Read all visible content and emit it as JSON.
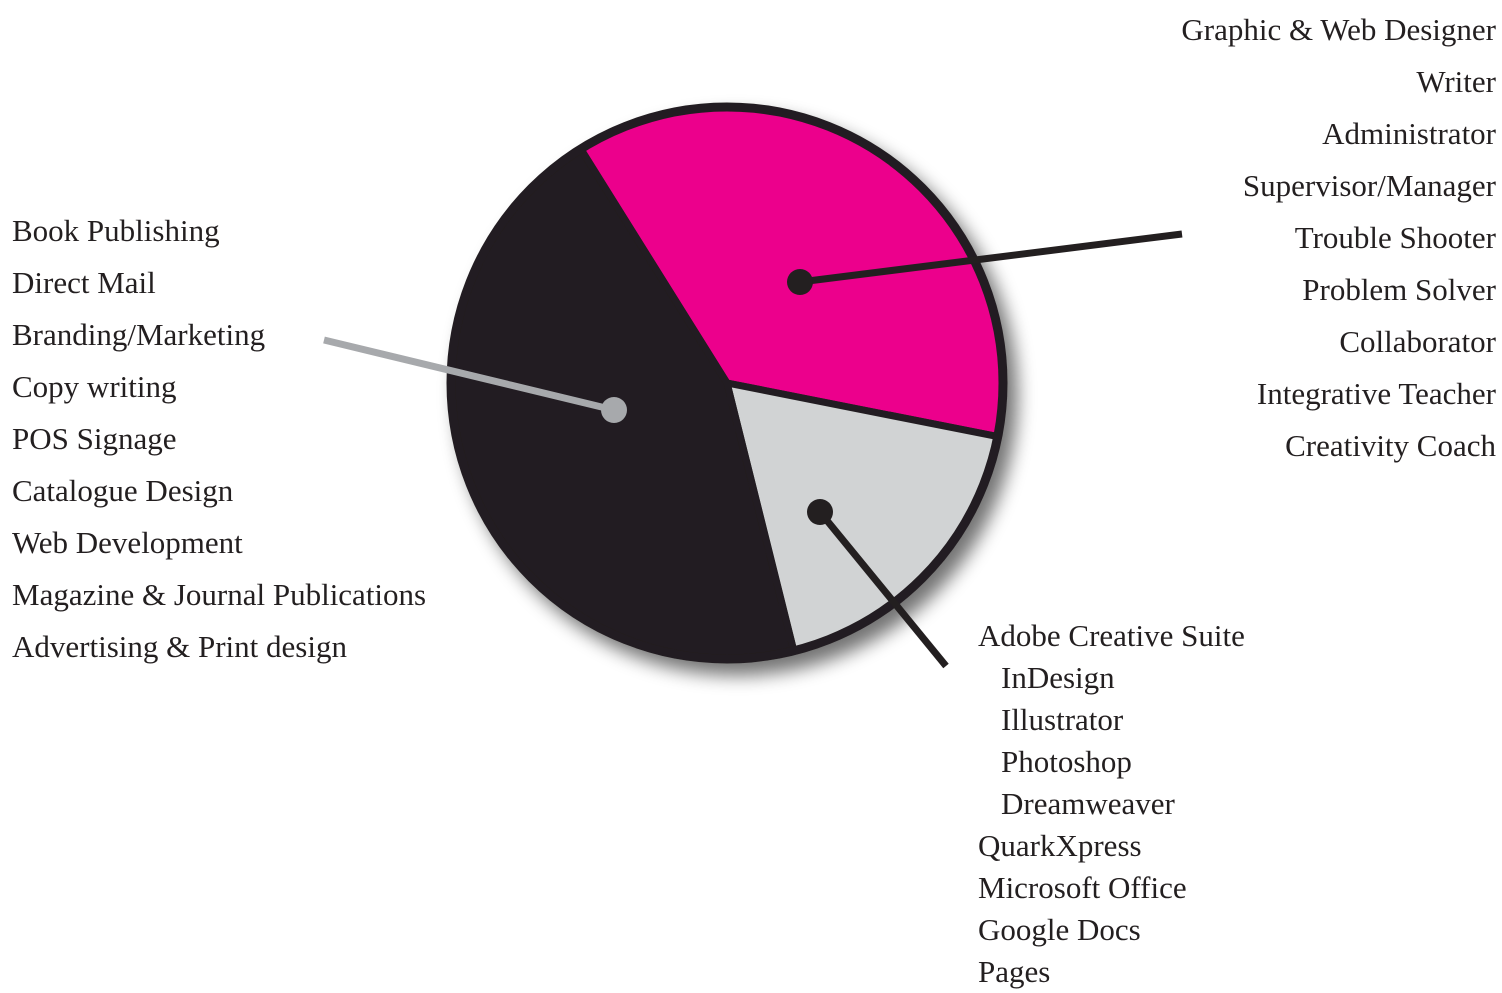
{
  "colors": {
    "magenta": "#ec008c",
    "black": "#231f20",
    "light_gray": "#d1d3d4",
    "pointer_gray": "#a7a9ac",
    "text": "#231f20"
  },
  "chart_data": {
    "type": "pie",
    "slices": [
      {
        "key": "roles",
        "value": 37,
        "color": "#ec008c",
        "pointer_color": "#231f20"
      },
      {
        "key": "software",
        "value": 18,
        "color": "#d1d3d4",
        "pointer_color": "#231f20"
      },
      {
        "key": "services",
        "value": 45,
        "color": "#231f20",
        "pointer_color": "#a7a9ac"
      }
    ]
  },
  "lists": {
    "services": [
      "Book Publishing",
      "Direct Mail",
      "Branding/Marketing",
      "Copy writing",
      "POS Signage",
      "Catalogue Design",
      "Web Development",
      "Magazine & Journal Publications",
      "Advertising & Print design"
    ],
    "roles": [
      "Graphic & Web Designer",
      "Writer",
      "Administrator",
      "Supervisor/Manager",
      "Trouble Shooter",
      "Problem Solver",
      "Collaborator",
      "Integrative Teacher",
      "Creativity Coach"
    ],
    "software": {
      "suite": "Adobe Creative Suite",
      "suite_apps": [
        "InDesign",
        "Illustrator",
        "Photoshop",
        "Dreamweaver"
      ],
      "others": [
        "QuarkXpress",
        "Microsoft Office",
        "Google Docs",
        "Pages"
      ]
    }
  }
}
